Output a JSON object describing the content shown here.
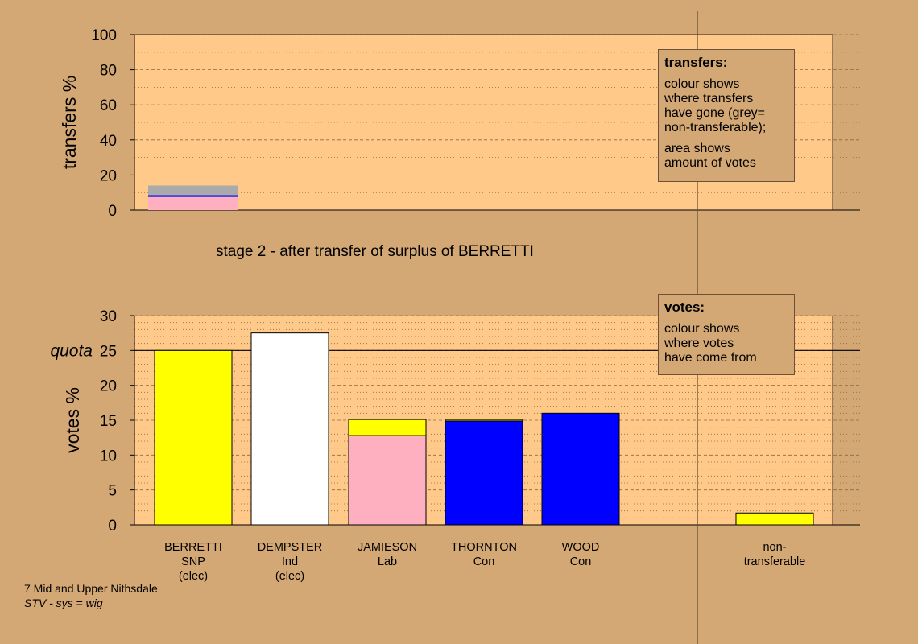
{
  "colors": {
    "page_bg": "#D4A874",
    "plot_bg": "#FFC98A",
    "SNP": "#FFFF00",
    "Ind": "#FFFFFF",
    "Lab": "#FFB0C0",
    "Con": "#0000FF",
    "non_transferable": "#AAAAAA"
  },
  "stage_title": "stage 2 - after transfer of surplus of BERRETTI",
  "footer": {
    "ward": "7 Mid and Upper Nithsdale",
    "system": "STV - sys = wig"
  },
  "legend_transfers": {
    "title": "transfers:",
    "line1": "colour shows\nwhere transfers\nhave gone (grey=\nnon-transferable);",
    "line2": "area shows\namount of votes"
  },
  "legend_votes": {
    "title": "votes:",
    "line1": "colour shows\nwhere votes\nhave come from"
  },
  "chart_data": [
    {
      "type": "bar",
      "name_key": "transfers",
      "ylabel": "transfers %",
      "ylim": [
        0,
        100
      ],
      "yticks": [
        0,
        20,
        40,
        60,
        80,
        100
      ],
      "grid": "dotted every 10, dashed every 20",
      "bars": [
        {
          "candidate": "BERRETTI",
          "segments": [
            {
              "party": "Lab",
              "color": "#FFB0C0",
              "value": 7.5
            },
            {
              "party": "Con",
              "color": "#0000FF",
              "value": 1.0
            },
            {
              "party": "non-transferable",
              "color": "#AAAAAA",
              "value": 5.5
            }
          ]
        }
      ]
    },
    {
      "type": "bar",
      "name_key": "votes",
      "ylabel": "votes %",
      "ylim": [
        0,
        30
      ],
      "yticks": [
        0,
        5,
        10,
        15,
        20,
        25,
        30
      ],
      "quota": 25,
      "quota_label": "quota",
      "grid": "dotted every 1, dashed every 5",
      "categories": [
        {
          "name": "BERRETTI",
          "party": "SNP",
          "status": "(elec)"
        },
        {
          "name": "DEMPSTER",
          "party": "Ind",
          "status": "(elec)"
        },
        {
          "name": "JAMIESON",
          "party": "Lab",
          "status": ""
        },
        {
          "name": "THORNTON",
          "party": "Con",
          "status": ""
        },
        {
          "name": "WOOD",
          "party": "Con",
          "status": ""
        },
        {
          "name": "non-",
          "party": "transferable",
          "status": ""
        }
      ],
      "stacks": [
        [
          {
            "from": "SNP",
            "color": "#FFFF00",
            "value": 25.0
          }
        ],
        [
          {
            "from": "Ind",
            "color": "#FFFFFF",
            "value": 27.5
          }
        ],
        [
          {
            "from": "Lab",
            "color": "#FFB0C0",
            "value": 12.8
          },
          {
            "from": "SNP",
            "color": "#FFFF00",
            "value": 2.3
          }
        ],
        [
          {
            "from": "Con",
            "color": "#0000FF",
            "value": 14.9
          },
          {
            "from": "SNP",
            "color": "#FFFF00",
            "value": 0.2
          }
        ],
        [
          {
            "from": "Con",
            "color": "#0000FF",
            "value": 16.0
          }
        ],
        [
          {
            "from": "SNP",
            "color": "#FFFF00",
            "value": 1.7
          }
        ]
      ]
    }
  ]
}
